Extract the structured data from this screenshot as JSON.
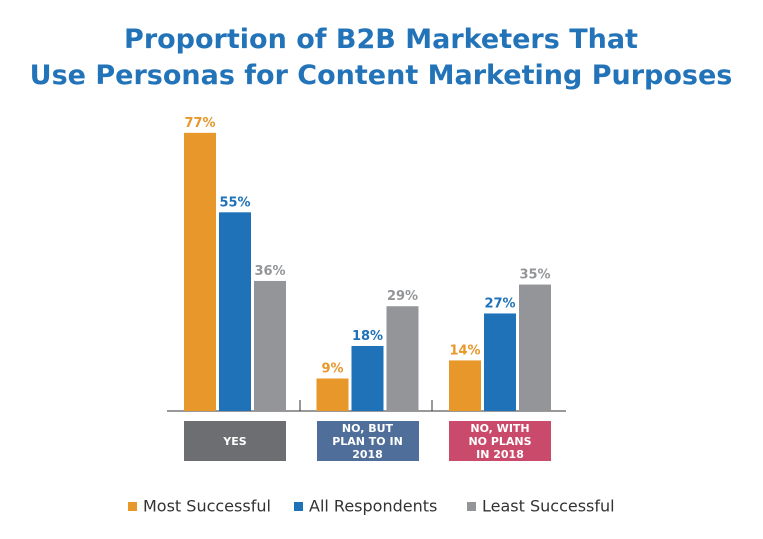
{
  "chart_data": {
    "type": "bar",
    "title": "Proportion of B2B Marketers That",
    "subtitle": "Use Personas for Content Marketing Purposes",
    "categories": [
      "YES",
      "NO, BUT PLAN TO IN 2018",
      "NO, WITH NO PLANS IN 2018"
    ],
    "category_colors": [
      "#6d6e71",
      "#4f6f9a",
      "#c94a6a"
    ],
    "series": [
      {
        "name": "Most Successful",
        "color": "#e8972a",
        "values": [
          77,
          9,
          14
        ],
        "value_labels": [
          "77%",
          "9%",
          "14%"
        ]
      },
      {
        "name": "All Respondents",
        "color": "#1f72b8",
        "values": [
          55,
          18,
          27
        ],
        "value_labels": [
          "55%",
          "18%",
          "27%"
        ]
      },
      {
        "name": "Least Successful",
        "color": "#939598",
        "values": [
          36,
          29,
          35
        ],
        "value_labels": [
          "36%",
          "29%",
          "35%"
        ]
      }
    ],
    "ylim": [
      0,
      80
    ],
    "legend": "bottom"
  }
}
